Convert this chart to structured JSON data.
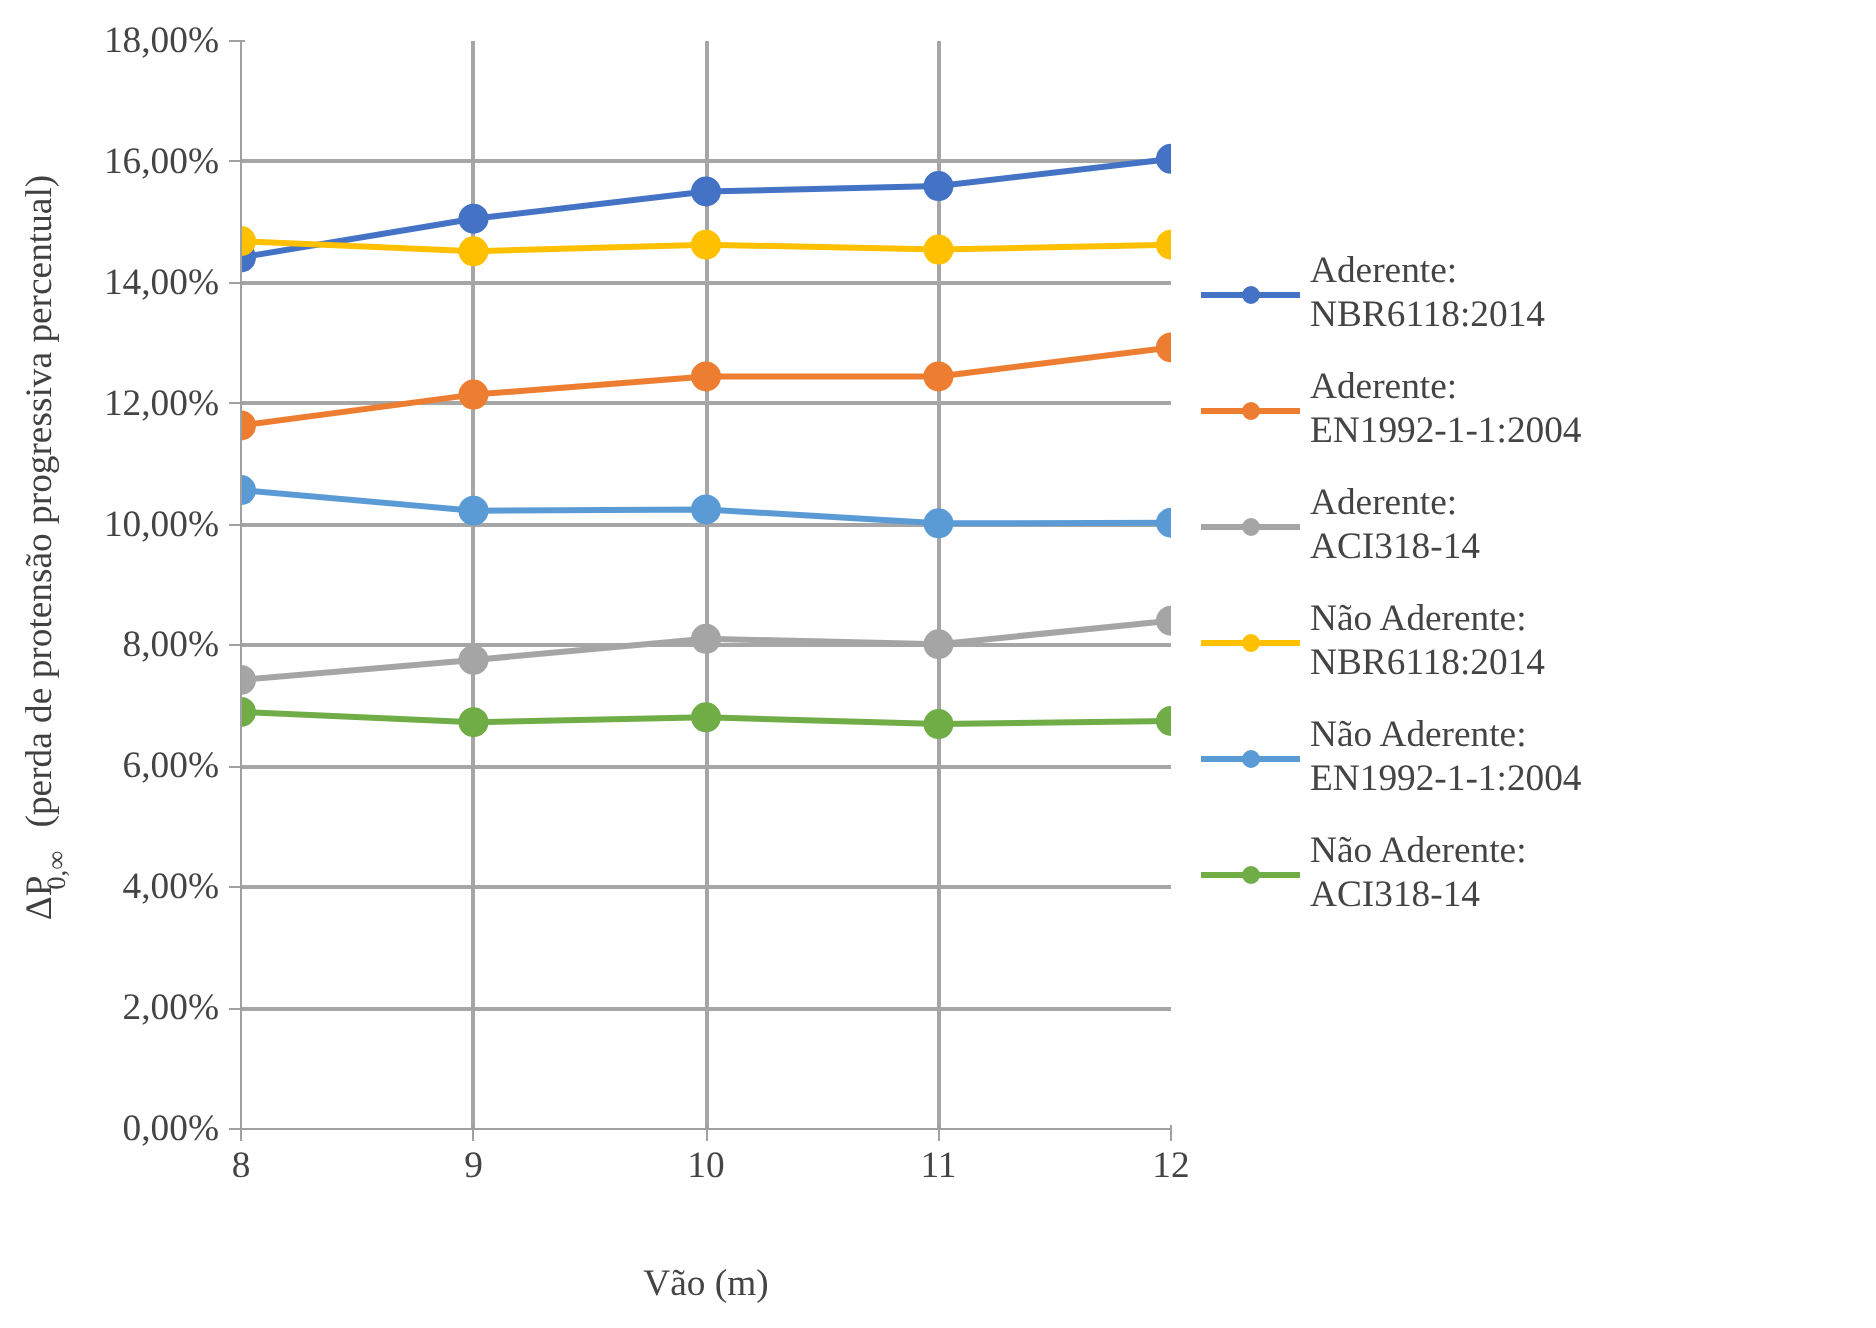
{
  "chart_data": {
    "type": "line",
    "xlabel": "Vão (m)",
    "ylabel": "ΔP$_{0,∞}$ (perda de protensão progressiva percentual)",
    "x": [
      8,
      9,
      10,
      11,
      12
    ],
    "series": [
      {
        "name": "Aderente: NBR6118:2014",
        "color": "#4472c4",
        "values": [
          14.42,
          15.06,
          15.51,
          15.6,
          16.05
        ]
      },
      {
        "name": "Aderente: EN1992-1-1:2004",
        "color": "#ed7d31",
        "values": [
          11.64,
          12.15,
          12.45,
          12.45,
          12.93
        ]
      },
      {
        "name": "Aderente: ACI318-14",
        "color": "#a5a5a5",
        "values": [
          7.43,
          7.76,
          8.11,
          8.02,
          8.41
        ]
      },
      {
        "name": "Não Aderente: NBR6118:2014",
        "color": "#ffc000",
        "values": [
          14.69,
          14.52,
          14.63,
          14.55,
          14.63
        ]
      },
      {
        "name": "Não Aderente: EN1992-1-1:2004",
        "color": "#5b9bd5",
        "values": [
          10.57,
          10.23,
          10.25,
          10.02,
          10.03
        ]
      },
      {
        "name": "Não Aderente: ACI318-14",
        "color": "#70ad47",
        "values": [
          6.9,
          6.73,
          6.81,
          6.7,
          6.75
        ]
      }
    ],
    "xlim": [
      8,
      12
    ],
    "xticks": [
      8,
      9,
      10,
      11,
      12
    ],
    "ylim": [
      0,
      18
    ],
    "yticks": [
      {
        "value": 0,
        "label": "0,00%"
      },
      {
        "value": 2,
        "label": "2,00%"
      },
      {
        "value": 4,
        "label": "4,00%"
      },
      {
        "value": 6,
        "label": "6,00%"
      },
      {
        "value": 8,
        "label": "8,00%"
      },
      {
        "value": 10,
        "label": "10,00%"
      },
      {
        "value": 12,
        "label": "12,00%"
      },
      {
        "value": 14,
        "label": "14,00%"
      },
      {
        "value": 16,
        "label": "16,00%"
      },
      {
        "value": 18,
        "label": "18,00%"
      }
    ],
    "grid": true,
    "legend": "right",
    "marker": "circle",
    "line_style": "solid"
  }
}
